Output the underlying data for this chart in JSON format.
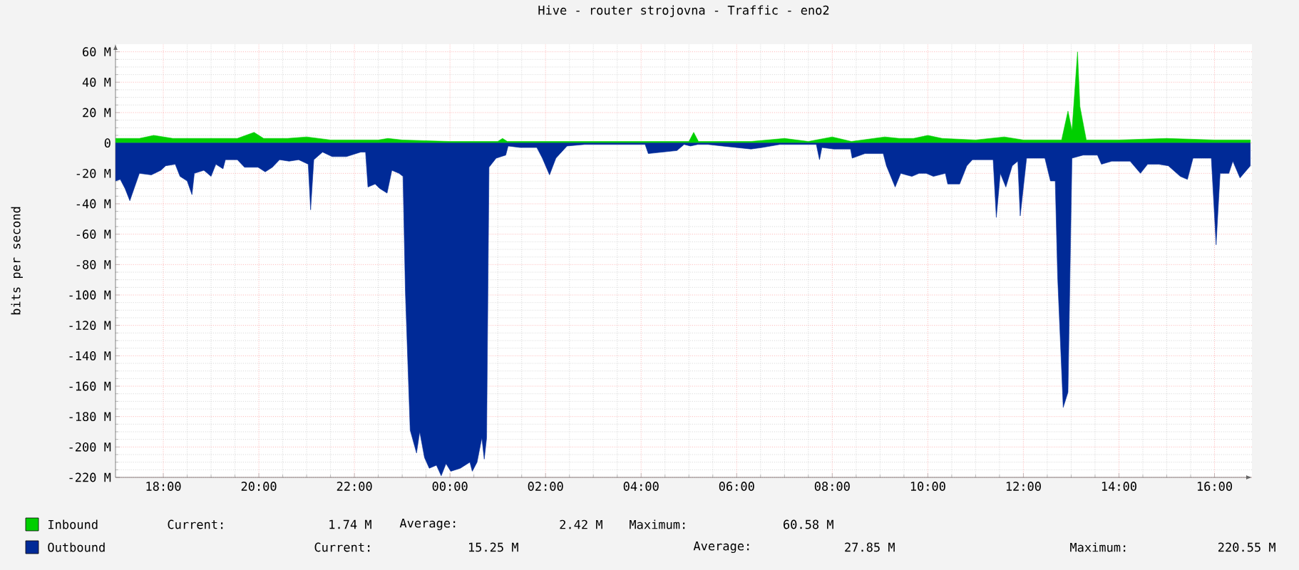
{
  "chart_data": {
    "type": "area",
    "title": "Hive - router strojovna - Traffic - eno2",
    "ylabel": "bits per second",
    "xlim": [
      "2000-01-01T17:00",
      "2000-01-02T16:47"
    ],
    "xticks": [
      {
        "value": "2000-01-01T18:00",
        "label": "18:00"
      },
      {
        "value": "2000-01-01T20:00",
        "label": "20:00"
      },
      {
        "value": "2000-01-01T22:00",
        "label": "22:00"
      },
      {
        "value": "2000-01-02T00:00",
        "label": "00:00"
      },
      {
        "value": "2000-01-02T02:00",
        "label": "02:00"
      },
      {
        "value": "2000-01-02T04:00",
        "label": "04:00"
      },
      {
        "value": "2000-01-02T06:00",
        "label": "06:00"
      },
      {
        "value": "2000-01-02T08:00",
        "label": "08:00"
      },
      {
        "value": "2000-01-02T10:00",
        "label": "10:00"
      },
      {
        "value": "2000-01-02T12:00",
        "label": "12:00"
      },
      {
        "value": "2000-01-02T14:00",
        "label": "14:00"
      },
      {
        "value": "2000-01-02T16:00",
        "label": "16:00"
      }
    ],
    "ylim": [
      -220,
      65
    ],
    "yticks": [
      {
        "value": 60,
        "label": "60 M"
      },
      {
        "value": 40,
        "label": "40 M"
      },
      {
        "value": 20,
        "label": "20 M"
      },
      0,
      {
        "value": -20,
        "label": "-20 M"
      },
      {
        "value": -40,
        "label": "-40 M"
      },
      {
        "value": -60,
        "label": "-60 M"
      },
      {
        "value": -80,
        "label": "-80 M"
      },
      {
        "value": -100,
        "label": "-100 M"
      },
      {
        "value": -120,
        "label": "-120 M"
      },
      {
        "value": -140,
        "label": "-140 M"
      },
      {
        "value": -160,
        "label": "-160 M"
      },
      {
        "value": -180,
        "label": "-180 M"
      },
      {
        "value": -200,
        "label": "-200 M"
      },
      {
        "value": -220,
        "label": "-220 M"
      }
    ],
    "grid": true,
    "legend": "bottom",
    "series": [
      {
        "name": "Inbound",
        "color": "#00cf00",
        "x": [
          "2000-01-01T17:00",
          "2000-01-01T17:30",
          "2000-01-01T17:48",
          "2000-01-01T18:12",
          "2000-01-01T19:00",
          "2000-01-01T19:33",
          "2000-01-01T19:54",
          "2000-01-01T20:06",
          "2000-01-01T20:36",
          "2000-01-01T21:00",
          "2000-01-01T21:30",
          "2000-01-01T22:30",
          "2000-01-01T22:42",
          "2000-01-01T23:00",
          "2000-01-02T00:00",
          "2000-01-02T01:00",
          "2000-01-02T01:06",
          "2000-01-02T01:12",
          "2000-01-02T02:30",
          "2000-01-02T04:30",
          "2000-01-02T05:00",
          "2000-01-02T05:06",
          "2000-01-02T05:12",
          "2000-01-02T05:24",
          "2000-01-02T05:48",
          "2000-01-02T06:18",
          "2000-01-02T07:00",
          "2000-01-02T07:30",
          "2000-01-02T08:00",
          "2000-01-02T08:24",
          "2000-01-02T09:06",
          "2000-01-02T09:24",
          "2000-01-02T09:42",
          "2000-01-02T10:00",
          "2000-01-02T10:18",
          "2000-01-02T11:00",
          "2000-01-02T11:36",
          "2000-01-02T12:00",
          "2000-01-02T12:48",
          "2000-01-02T12:56",
          "2000-01-02T13:01",
          "2000-01-02T13:08",
          "2000-01-02T13:11",
          "2000-01-02T13:19",
          "2000-01-02T14:00",
          "2000-01-02T15:00",
          "2000-01-02T16:00",
          "2000-01-02T16:45"
        ],
        "values": [
          3,
          3,
          5,
          3,
          3,
          3,
          7,
          3,
          3,
          4,
          2,
          2,
          3,
          2,
          1,
          1,
          3,
          1,
          1,
          1,
          1,
          7,
          1,
          1,
          null,
          1,
          3,
          1,
          4,
          1,
          4,
          3,
          3,
          5,
          3,
          2,
          4,
          2,
          2,
          21,
          8,
          60,
          24,
          2,
          2,
          3,
          2,
          2
        ]
      },
      {
        "name": "Outbound",
        "color": "#002a97",
        "x": [
          "2000-01-01T17:00",
          "2000-01-01T17:06",
          "2000-01-01T17:12",
          "2000-01-01T17:18",
          "2000-01-01T17:24",
          "2000-01-01T17:30",
          "2000-01-01T17:45",
          "2000-01-01T17:57",
          "2000-01-01T18:03",
          "2000-01-01T18:15",
          "2000-01-01T18:21",
          "2000-01-01T18:30",
          "2000-01-01T18:36",
          "2000-01-01T18:39",
          "2000-01-01T18:51",
          "2000-01-01T19:00",
          "2000-01-01T19:06",
          "2000-01-01T19:15",
          "2000-01-01T19:18",
          "2000-01-01T19:33",
          "2000-01-01T19:42",
          "2000-01-01T19:59",
          "2000-01-01T20:08",
          "2000-01-01T20:17",
          "2000-01-01T20:26",
          "2000-01-01T20:38",
          "2000-01-01T20:50",
          "2000-01-01T21:02",
          "2000-01-01T21:05",
          "2000-01-01T21:09",
          "2000-01-01T21:20",
          "2000-01-01T21:32",
          "2000-01-01T21:50",
          "2000-01-01T22:08",
          "2000-01-01T22:14",
          "2000-01-01T22:17",
          "2000-01-01T22:26",
          "2000-01-01T22:32",
          "2000-01-01T22:41",
          "2000-01-01T22:47",
          "2000-01-01T22:56",
          "2000-01-01T23:01",
          "2000-01-01T23:04",
          "2000-01-01T23:10",
          "2000-01-01T23:18",
          "2000-01-01T23:22",
          "2000-01-01T23:28",
          "2000-01-01T23:34",
          "2000-01-01T23:43",
          "2000-01-01T23:49",
          "2000-01-01T23:55",
          "2000-01-02T00:01",
          "2000-01-02T00:13",
          "2000-01-02T00:25",
          "2000-01-02T00:28",
          "2000-01-02T00:34",
          "2000-01-02T00:40",
          "2000-01-02T00:43",
          "2000-01-02T00:46",
          "2000-01-02T00:49",
          "2000-01-02T00:58",
          "2000-01-02T01:10",
          "2000-01-02T01:13",
          "2000-01-02T01:28",
          "2000-01-02T01:49",
          "2000-01-02T01:56",
          "2000-01-02T02:05",
          "2000-01-02T02:13",
          "2000-01-02T02:27",
          "2000-01-02T02:49",
          "2000-01-02T03:42",
          "2000-01-02T04:05",
          "2000-01-02T04:09",
          "2000-01-02T04:27",
          "2000-01-02T04:45",
          "2000-01-02T04:54",
          "2000-01-02T05:02",
          "2000-01-02T05:11",
          "2000-01-02T05:24",
          "2000-01-02T05:48",
          "2000-01-02T06:18",
          "2000-01-02T06:32",
          "2000-01-02T06:54",
          "2000-01-02T07:40",
          "2000-01-02T07:44",
          "2000-01-02T07:47",
          "2000-01-02T08:02",
          "2000-01-02T08:23",
          "2000-01-02T08:25",
          "2000-01-02T08:41",
          "2000-01-02T09:04",
          "2000-01-02T09:08",
          "2000-01-02T09:19",
          "2000-01-02T09:26",
          "2000-01-02T09:40",
          "2000-01-02T09:49",
          "2000-01-02T09:58",
          "2000-01-02T10:07",
          "2000-01-02T10:22",
          "2000-01-02T10:25",
          "2000-01-02T10:40",
          "2000-01-02T10:49",
          "2000-01-02T10:56",
          "2000-01-02T11:22",
          "2000-01-02T11:26",
          "2000-01-02T11:31",
          "2000-01-02T11:38",
          "2000-01-02T11:46",
          "2000-01-02T11:53",
          "2000-01-02T11:56",
          "2000-01-02T12:04",
          "2000-01-02T12:27",
          "2000-01-02T12:34",
          "2000-01-02T12:40",
          "2000-01-02T12:43",
          "2000-01-02T12:50",
          "2000-01-02T12:56",
          "2000-01-02T13:01",
          "2000-01-02T13:15",
          "2000-01-02T13:33",
          "2000-01-02T13:38",
          "2000-01-02T13:51",
          "2000-01-02T14:14",
          "2000-01-02T14:27",
          "2000-01-02T14:36",
          "2000-01-02T14:50",
          "2000-01-02T15:02",
          "2000-01-02T15:17",
          "2000-01-02T15:26",
          "2000-01-02T15:33",
          "2000-01-02T15:56",
          "2000-01-02T16:02",
          "2000-01-02T16:07",
          "2000-01-02T16:18",
          "2000-01-02T16:23",
          "2000-01-02T16:32",
          "2000-01-02T16:45"
        ],
        "values": [
          -25,
          -24,
          -30,
          -38,
          -29,
          -20,
          -21,
          -18,
          -15,
          -14,
          -22,
          -25,
          -34,
          -20,
          -18,
          -22,
          -14,
          -17,
          -11,
          -11,
          -16,
          -16,
          -19,
          -16,
          -11,
          -12,
          -11,
          -14,
          -44,
          -11,
          -6,
          -9,
          -9,
          -6,
          -6,
          -29,
          -27,
          -30,
          -33,
          -18,
          -20,
          -22,
          -98,
          -189,
          -204,
          -190,
          -207,
          -214,
          -212,
          -219,
          -211,
          -216,
          -214,
          -210,
          -216,
          -210,
          -194,
          -208,
          -194,
          -16,
          -10,
          -8,
          -2,
          -3,
          -3,
          -10,
          -21,
          -10,
          -2,
          -1,
          -1,
          -1,
          -7,
          -6,
          -5,
          -1,
          -2,
          -1,
          -1,
          null,
          -4,
          -3,
          -1,
          -1,
          -11,
          -3,
          -4,
          -4,
          -10,
          -7,
          -7,
          -15,
          -29,
          -20,
          -22,
          -20,
          -20,
          -22,
          -20,
          -27,
          -27,
          -15,
          -11,
          -11,
          -49,
          -20,
          -29,
          -15,
          -12,
          -48,
          -10,
          -10,
          -25,
          -25,
          -88,
          -174,
          -164,
          -10,
          -8,
          -8,
          -14,
          -12,
          -12,
          -20,
          -14,
          -14,
          -15,
          -22,
          -24,
          -10,
          -10,
          -67,
          -20,
          -20,
          -12,
          -23,
          -15
        ]
      }
    ],
    "annotations": [
      "Current:",
      "1.74 M",
      "Average:",
      "2.42 M",
      "Maximum:",
      "60.58 M",
      "Current:",
      "15.25 M",
      "Average:",
      "27.85 M",
      "Maximum:",
      "220.55 M"
    ]
  }
}
